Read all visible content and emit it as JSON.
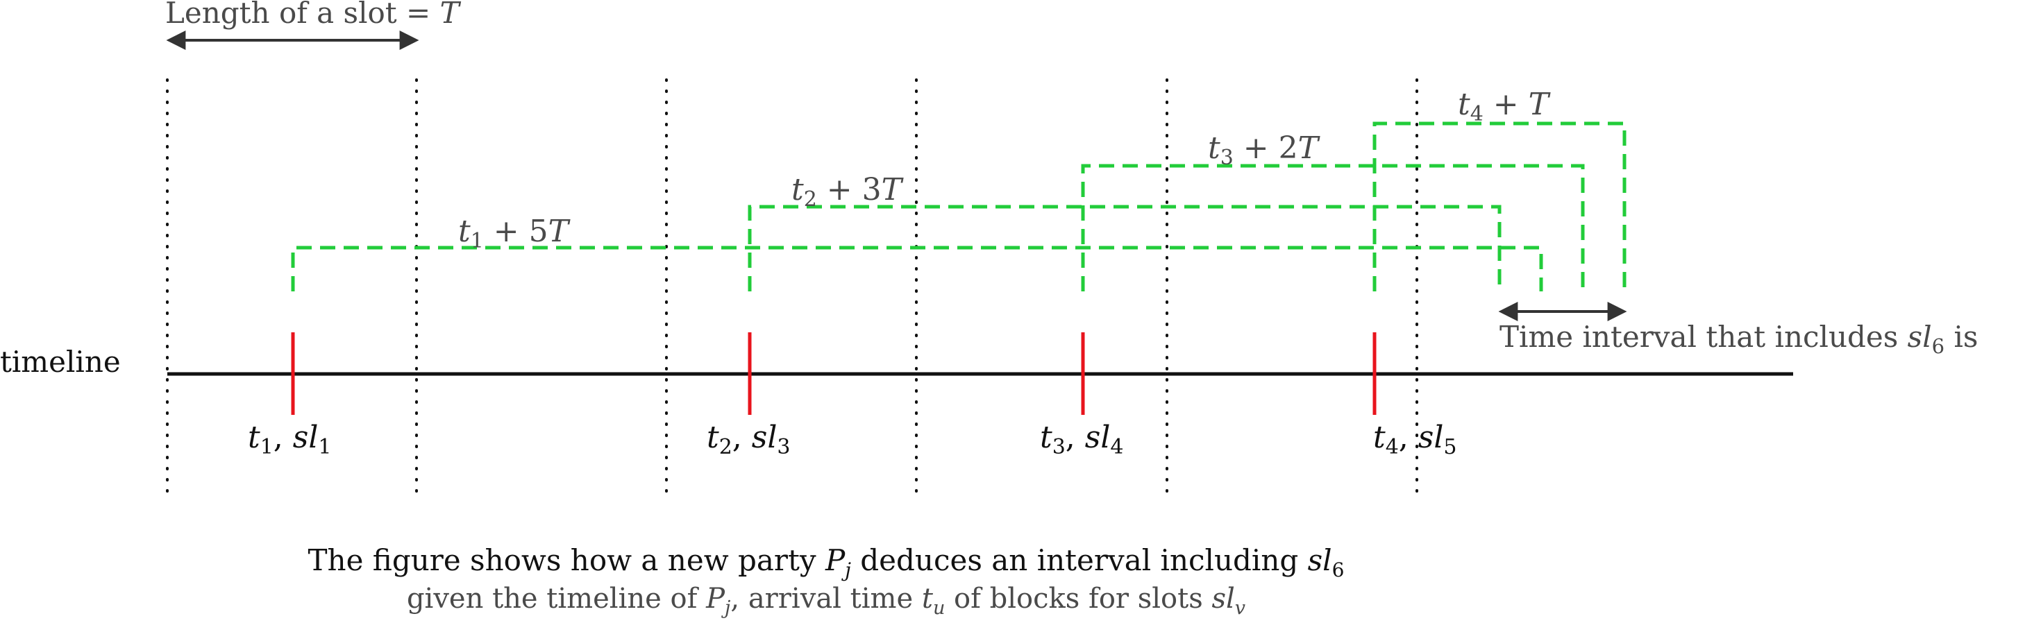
{
  "slot_length": {
    "text": "Length of a slot = ",
    "var": "T"
  },
  "timeline_label": "timeline",
  "arrivals": [
    {
      "t": "t",
      "t_sub": "1",
      "sl": "sl",
      "sl_sub": "1",
      "offset_base": "t",
      "offset_sub": "1",
      "offset_rest": " + 5",
      "offset_var": "T"
    },
    {
      "t": "t",
      "t_sub": "2",
      "sl": "sl",
      "sl_sub": "3",
      "offset_base": "t",
      "offset_sub": "2",
      "offset_rest": " + 3",
      "offset_var": "T"
    },
    {
      "t": "t",
      "t_sub": "3",
      "sl": "sl",
      "sl_sub": "4",
      "offset_base": "t",
      "offset_sub": "3",
      "offset_rest": " + 2",
      "offset_var": "T"
    },
    {
      "t": "t",
      "t_sub": "4",
      "sl": "sl",
      "sl_sub": "5",
      "offset_base": "t",
      "offset_sub": "4",
      "offset_rest": " + ",
      "offset_var": "T"
    }
  ],
  "interval": {
    "text": "Time interval that includes ",
    "var": "sl",
    "sub": "6",
    "after": " is"
  },
  "caption_line1": {
    "a": "The figure shows how a new party ",
    "p": "P",
    "p_sub": "j",
    "b": " deduces an interval including ",
    "sl": "sl",
    "sl_sub": "6"
  },
  "caption_line2": {
    "a": "given the timeline of ",
    "p": "P",
    "p_sub": "j",
    "b": ", arrival time ",
    "t": "t",
    "t_sub": "u",
    "c": " of blocks for slots ",
    "sl": "sl",
    "sl_sub": "v"
  },
  "colors": {
    "arrival_marker": "#e8141d",
    "offset_path": "#22cc3a",
    "timeline": "#111111",
    "slot_divider": "#111111",
    "arrow": "#333333"
  }
}
